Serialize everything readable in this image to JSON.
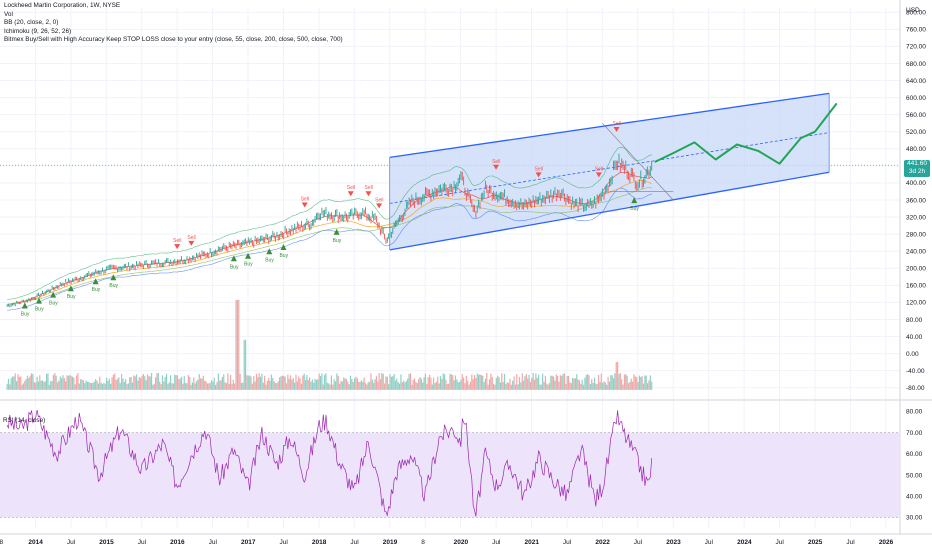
{
  "header": {
    "title": "Lockheed Martin Corporation, 1W, NYSE",
    "indicators": [
      "Vol",
      "BB (20, close, 2, 0)",
      "Ichimoku (9, 26, 52, 26)",
      "Bitmex Buy/Sell with High Accuracy Keep STOP LOSS close to your entry (close, 55, close, 200, close, 500, close, 700)"
    ],
    "rsi_label": "RSI (14, close)"
  },
  "price_axis": {
    "currency": "USD",
    "ticks": [
      "800.00",
      "760.00",
      "720.00",
      "680.00",
      "640.00",
      "600.00",
      "560.00",
      "520.00",
      "480.00",
      "440.00",
      "400.00",
      "360.00",
      "320.00",
      "280.00",
      "240.00",
      "200.00",
      "160.00",
      "120.00",
      "80.00",
      "40.00",
      "0.00",
      "-40.00",
      "-80.00"
    ],
    "last_price": "441.60",
    "countdown": "3d 2h"
  },
  "rsi_axis": {
    "ticks": [
      "80.00",
      "70.00",
      "60.00",
      "50.00",
      "40.00",
      "30.00"
    ]
  },
  "time_axis": {
    "labels": [
      "8",
      "2014",
      "Jul",
      "2015",
      "Jul",
      "2016",
      "Jul",
      "2017",
      "Jul",
      "2018",
      "Jul",
      "2019",
      "8",
      "2020",
      "Jul",
      "2021",
      "Jul",
      "2022",
      "Jul",
      "2023",
      "Jul",
      "2024",
      "Jul",
      "2025",
      "Jul",
      "2026"
    ]
  },
  "signals": {
    "sell_label": "Sell",
    "buy_label": "Buy"
  },
  "colors": {
    "channel_fill": "#c8d8f7",
    "channel_line": "#2962ff",
    "projection": "#22a556",
    "rsi": "#9c27b0",
    "rsi_band": "#ede3fa",
    "last_price_box": "#26a69a",
    "sell_marker": "#ef5350",
    "buy_marker": "#388e3c",
    "volume_up": "#8fd0c6",
    "volume_down": "#f5a6a6"
  },
  "chart_data": [
    {
      "type": "line",
      "title": "Lockheed Martin Corporation, 1W, NYSE",
      "ylabel": "USD",
      "ylim": [
        -90,
        810
      ],
      "xlim": [
        2013.5,
        2026.2
      ],
      "series": [
        {
          "name": "",
          "x": [
            2013.6,
            2013.9,
            2014.1,
            2014.4,
            2014.6,
            2014.9,
            2015.1,
            2015.4,
            2015.6,
            2015.9,
            2016.1,
            2016.4,
            2016.6,
            2016.9,
            2017.1,
            2017.4,
            2017.6,
            2017.9,
            2018.0,
            2018.2,
            2018.4,
            2018.6,
            2018.8,
            2018.95,
            2019.1,
            2019.3,
            2019.5,
            2019.7,
            2019.9,
            2020.0,
            2020.1,
            2020.2,
            2020.35,
            2020.5,
            2020.7,
            2020.9,
            2021.0,
            2021.2,
            2021.4,
            2021.6,
            2021.8,
            2021.95,
            2022.1,
            2022.2,
            2022.35,
            2022.5,
            2022.6,
            2022.7
          ],
          "values": [
            112,
            125,
            140,
            165,
            175,
            192,
            200,
            205,
            210,
            215,
            220,
            232,
            245,
            255,
            262,
            275,
            290,
            305,
            330,
            325,
            320,
            330,
            315,
            265,
            305,
            355,
            370,
            385,
            390,
            415,
            370,
            330,
            385,
            375,
            360,
            345,
            355,
            365,
            380,
            350,
            345,
            360,
            400,
            450,
            430,
            400,
            415,
            441.6
          ]
        }
      ],
      "channel": {
        "x": [
          2019.0,
          2025.2
        ],
        "upper": [
          460,
          610
        ],
        "lower": [
          243,
          425
        ],
        "mid": [
          352,
          518
        ]
      },
      "projection": {
        "x": [
          2022.75,
          2023.0,
          2023.3,
          2023.6,
          2023.9,
          2024.2,
          2024.5,
          2024.8,
          2025.0,
          2025.3
        ],
        "values": [
          450,
          470,
          495,
          455,
          490,
          475,
          445,
          505,
          520,
          585
        ]
      },
      "annotations": [
        "Sell",
        "Buy"
      ]
    },
    {
      "type": "bar",
      "title": "Vol",
      "note": "weekly volume histogram"
    },
    {
      "type": "line",
      "title": "RSI (14, close)",
      "ylim": [
        25,
        83
      ],
      "band": [
        30,
        70
      ],
      "series": [
        {
          "name": "",
          "x": [
            2013.6,
            2013.8,
            2014.0,
            2014.3,
            2014.6,
            2014.9,
            2015.2,
            2015.5,
            2015.8,
            2016.0,
            2016.2,
            2016.4,
            2016.6,
            2016.8,
            2017.0,
            2017.2,
            2017.4,
            2017.6,
            2017.8,
            2018.0,
            2018.1,
            2018.3,
            2018.5,
            2018.7,
            2018.85,
            2018.95,
            2019.1,
            2019.3,
            2019.5,
            2019.7,
            2019.9,
            2020.0,
            2020.05,
            2020.15,
            2020.2,
            2020.35,
            2020.5,
            2020.7,
            2020.9,
            2021.1,
            2021.3,
            2021.5,
            2021.7,
            2021.9,
            2022.0,
            2022.1,
            2022.2,
            2022.3,
            2022.45,
            2022.55,
            2022.65,
            2022.7
          ],
          "values": [
            75,
            72,
            79,
            60,
            77,
            50,
            72,
            52,
            65,
            45,
            60,
            72,
            48,
            62,
            44,
            70,
            55,
            68,
            50,
            73,
            76,
            55,
            42,
            66,
            45,
            30,
            52,
            60,
            40,
            68,
            72,
            66,
            80,
            50,
            28,
            60,
            45,
            55,
            40,
            58,
            48,
            40,
            62,
            38,
            45,
            60,
            78,
            70,
            60,
            52,
            45,
            56
          ]
        }
      ]
    }
  ]
}
